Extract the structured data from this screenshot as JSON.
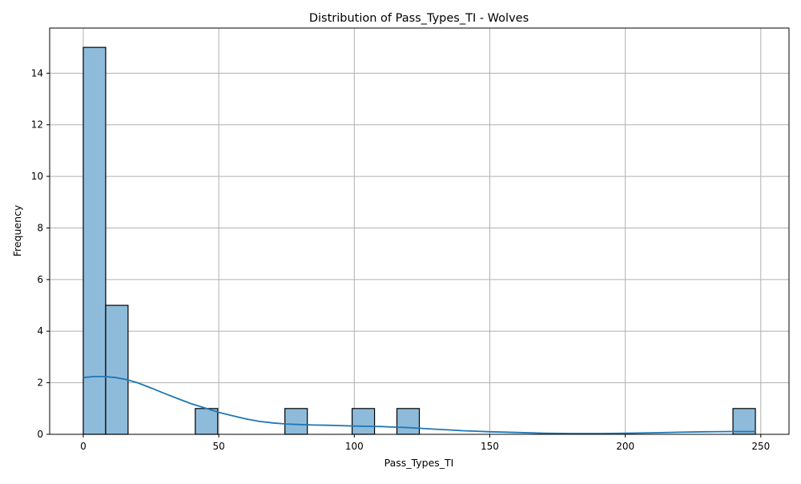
{
  "chart_data": {
    "type": "bar",
    "subtype": "histogram",
    "title": "Distribution of Pass_Types_TI - Wolves",
    "xlabel": "Pass_Types_TI",
    "ylabel": "Frequency",
    "xlim": [
      -12.4,
      260.4
    ],
    "ylim": [
      0,
      15.75
    ],
    "x_ticks": [
      0,
      50,
      100,
      150,
      200,
      250
    ],
    "y_ticks": [
      0,
      2,
      4,
      6,
      8,
      10,
      12,
      14
    ],
    "grid": true,
    "bar_color": "#8fbbdb",
    "edge_color": "#000000",
    "kde_color": "#1f77b4",
    "bins": [
      {
        "x0": 0.0,
        "x1": 8.27,
        "count": 15
      },
      {
        "x0": 8.27,
        "x1": 16.53,
        "count": 5
      },
      {
        "x0": 16.53,
        "x1": 24.8,
        "count": 0
      },
      {
        "x0": 24.8,
        "x1": 33.07,
        "count": 0
      },
      {
        "x0": 33.07,
        "x1": 41.33,
        "count": 0
      },
      {
        "x0": 41.33,
        "x1": 49.6,
        "count": 1
      },
      {
        "x0": 49.6,
        "x1": 57.87,
        "count": 0
      },
      {
        "x0": 57.87,
        "x1": 66.13,
        "count": 0
      },
      {
        "x0": 66.13,
        "x1": 74.4,
        "count": 0
      },
      {
        "x0": 74.4,
        "x1": 82.67,
        "count": 1
      },
      {
        "x0": 82.67,
        "x1": 90.93,
        "count": 0
      },
      {
        "x0": 90.93,
        "x1": 99.2,
        "count": 0
      },
      {
        "x0": 99.2,
        "x1": 107.47,
        "count": 1
      },
      {
        "x0": 107.47,
        "x1": 115.73,
        "count": 0
      },
      {
        "x0": 115.73,
        "x1": 124.0,
        "count": 1
      },
      {
        "x0": 124.0,
        "x1": 132.27,
        "count": 0
      },
      {
        "x0": 132.27,
        "x1": 140.53,
        "count": 0
      },
      {
        "x0": 140.53,
        "x1": 148.8,
        "count": 0
      },
      {
        "x0": 148.8,
        "x1": 157.07,
        "count": 0
      },
      {
        "x0": 157.07,
        "x1": 165.33,
        "count": 0
      },
      {
        "x0": 165.33,
        "x1": 173.6,
        "count": 0
      },
      {
        "x0": 173.6,
        "x1": 181.87,
        "count": 0
      },
      {
        "x0": 181.87,
        "x1": 190.13,
        "count": 0
      },
      {
        "x0": 190.13,
        "x1": 198.4,
        "count": 0
      },
      {
        "x0": 198.4,
        "x1": 206.67,
        "count": 0
      },
      {
        "x0": 206.67,
        "x1": 214.93,
        "count": 0
      },
      {
        "x0": 214.93,
        "x1": 223.2,
        "count": 0
      },
      {
        "x0": 223.2,
        "x1": 231.47,
        "count": 0
      },
      {
        "x0": 231.47,
        "x1": 239.73,
        "count": 0
      },
      {
        "x0": 239.73,
        "x1": 248.0,
        "count": 1
      }
    ],
    "kde_curve": [
      [
        0,
        2.2
      ],
      [
        4,
        2.24
      ],
      [
        8,
        2.24
      ],
      [
        12,
        2.2
      ],
      [
        16,
        2.12
      ],
      [
        20,
        2.0
      ],
      [
        25,
        1.8
      ],
      [
        30,
        1.58
      ],
      [
        35,
        1.38
      ],
      [
        40,
        1.18
      ],
      [
        45,
        1.02
      ],
      [
        50,
        0.85
      ],
      [
        55,
        0.72
      ],
      [
        60,
        0.6
      ],
      [
        65,
        0.5
      ],
      [
        70,
        0.44
      ],
      [
        75,
        0.4
      ],
      [
        80,
        0.38
      ],
      [
        85,
        0.36
      ],
      [
        90,
        0.35
      ],
      [
        95,
        0.34
      ],
      [
        100,
        0.32
      ],
      [
        105,
        0.31
      ],
      [
        110,
        0.3
      ],
      [
        115,
        0.28
      ],
      [
        120,
        0.26
      ],
      [
        125,
        0.23
      ],
      [
        130,
        0.2
      ],
      [
        135,
        0.17
      ],
      [
        140,
        0.14
      ],
      [
        145,
        0.12
      ],
      [
        150,
        0.1
      ],
      [
        160,
        0.07
      ],
      [
        170,
        0.04
      ],
      [
        180,
        0.03
      ],
      [
        190,
        0.03
      ],
      [
        200,
        0.04
      ],
      [
        210,
        0.06
      ],
      [
        220,
        0.08
      ],
      [
        230,
        0.1
      ],
      [
        240,
        0.11
      ],
      [
        248,
        0.11
      ]
    ]
  }
}
